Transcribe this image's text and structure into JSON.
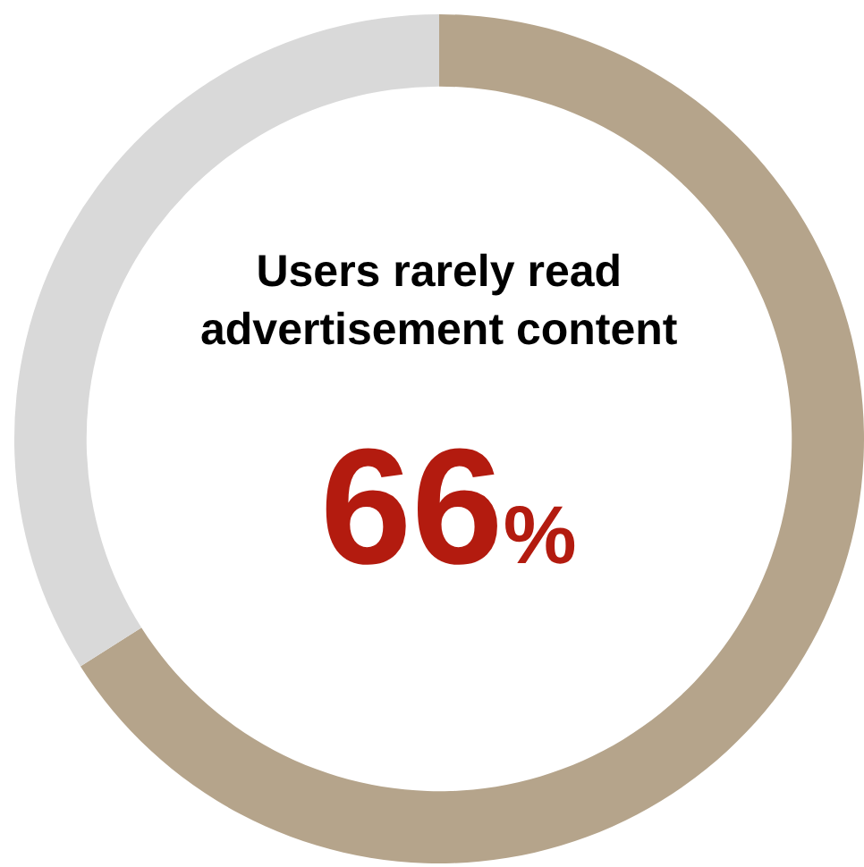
{
  "chart_data": {
    "type": "donut",
    "title": "Users rarely read advertisement content",
    "categories": [
      null,
      null
    ],
    "values": [
      66,
      34
    ],
    "colors": [
      "#b5a48b",
      "#d9d9d9"
    ],
    "value_labels": [
      "66%",
      null
    ],
    "legend": false
  }
}
